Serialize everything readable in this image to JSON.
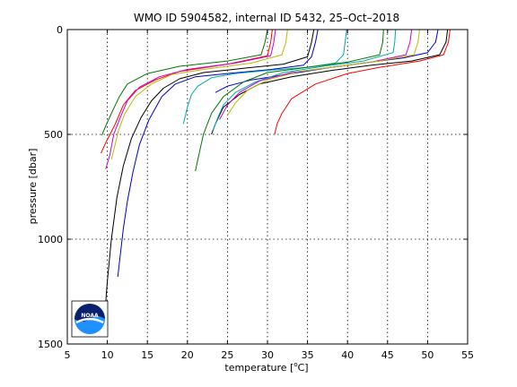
{
  "chart_data": {
    "type": "line",
    "title": "WMO ID 5904582, internal ID 5432, 25–Oct–2018",
    "xlabel_pre": "temperature [",
    "xlabel_deg": "o",
    "xlabel_post": "C]",
    "ylabel": "pressure [dbar]",
    "xlim": [
      5,
      55
    ],
    "ylim": [
      0,
      1500
    ],
    "y_reversed": true,
    "grid": true,
    "x_ticks": [
      5,
      10,
      15,
      20,
      25,
      30,
      35,
      40,
      45,
      50,
      55
    ],
    "y_ticks": [
      0,
      500,
      1000,
      1500
    ],
    "logo": "noaa-logo",
    "series": [
      {
        "color": "#0000cc",
        "points": [
          [
            36.3,
            0
          ],
          [
            36.0,
            60
          ],
          [
            35.5,
            130
          ],
          [
            34.5,
            170
          ],
          [
            30.5,
            190
          ],
          [
            25,
            210
          ],
          [
            21,
            225
          ],
          [
            18.5,
            260
          ],
          [
            16.8,
            320
          ],
          [
            15.2,
            430
          ],
          [
            14.0,
            550
          ],
          [
            13.2,
            680
          ],
          [
            12.5,
            820
          ],
          [
            12.0,
            950
          ],
          [
            11.6,
            1080
          ],
          [
            11.3,
            1180
          ]
        ]
      },
      {
        "color": "#000000",
        "points": [
          [
            35.8,
            0
          ],
          [
            35.5,
            60
          ],
          [
            35.0,
            130
          ],
          [
            32.0,
            165
          ],
          [
            27.0,
            185
          ],
          [
            22.0,
            205
          ],
          [
            19.0,
            235
          ],
          [
            17.0,
            280
          ],
          [
            15.5,
            340
          ],
          [
            14.2,
            420
          ],
          [
            13.0,
            520
          ],
          [
            12.0,
            650
          ],
          [
            11.2,
            800
          ],
          [
            10.5,
            1000
          ],
          [
            10.0,
            1200
          ],
          [
            9.7,
            1350
          ]
        ]
      },
      {
        "color": "#00aaaa",
        "points": [
          [
            39.9,
            0
          ],
          [
            39.7,
            60
          ],
          [
            39.5,
            120
          ],
          [
            38.5,
            160
          ],
          [
            35.0,
            180
          ],
          [
            30.0,
            195
          ],
          [
            26.0,
            210
          ],
          [
            23.0,
            230
          ],
          [
            21.3,
            270
          ],
          [
            20.5,
            310
          ],
          [
            20.0,
            370
          ],
          [
            19.5,
            450
          ]
        ]
      },
      {
        "color": "#ff0000",
        "points": [
          [
            30.6,
            0
          ],
          [
            30.4,
            60
          ],
          [
            30.0,
            125
          ],
          [
            25.0,
            165
          ],
          [
            19.0,
            200
          ],
          [
            16.0,
            240
          ],
          [
            13.5,
            290
          ],
          [
            12.0,
            360
          ],
          [
            11.0,
            450
          ],
          [
            9.8,
            540
          ],
          [
            9.2,
            590
          ]
        ]
      },
      {
        "color": "#007700",
        "points": [
          [
            30.0,
            0
          ],
          [
            29.7,
            60
          ],
          [
            29.2,
            120
          ],
          [
            25.0,
            150
          ],
          [
            19.0,
            175
          ],
          [
            15.0,
            210
          ],
          [
            12.5,
            260
          ],
          [
            11.5,
            320
          ],
          [
            10.5,
            400
          ],
          [
            9.8,
            460
          ],
          [
            9.3,
            505
          ]
        ]
      },
      {
        "color": "#cc00cc",
        "points": [
          [
            31.0,
            0
          ],
          [
            30.8,
            60
          ],
          [
            30.4,
            125
          ],
          [
            26.0,
            160
          ],
          [
            20.0,
            190
          ],
          [
            16.5,
            225
          ],
          [
            14.0,
            275
          ],
          [
            12.5,
            340
          ],
          [
            11.6,
            420
          ],
          [
            10.8,
            500
          ],
          [
            10.3,
            600
          ],
          [
            9.8,
            665
          ]
        ]
      },
      {
        "color": "#bbbb00",
        "points": [
          [
            32.5,
            0
          ],
          [
            32.3,
            60
          ],
          [
            31.8,
            120
          ],
          [
            28.0,
            160
          ],
          [
            22.0,
            190
          ],
          [
            18.0,
            215
          ],
          [
            15.5,
            260
          ],
          [
            13.5,
            320
          ],
          [
            12.2,
            400
          ],
          [
            11.4,
            480
          ],
          [
            10.9,
            560
          ],
          [
            10.5,
            620
          ]
        ]
      },
      {
        "color": "#0000cc",
        "points": [
          [
            51.3,
            0
          ],
          [
            51.0,
            60
          ],
          [
            50.0,
            110
          ],
          [
            47.0,
            135
          ],
          [
            42.0,
            160
          ],
          [
            38.0,
            180
          ],
          [
            33.0,
            210
          ],
          [
            28.0,
            240
          ],
          [
            25.0,
            270
          ],
          [
            23.5,
            300
          ]
        ]
      },
      {
        "color": "#000000",
        "points": [
          [
            52.5,
            0
          ],
          [
            52.3,
            60
          ],
          [
            51.5,
            120
          ],
          [
            48.0,
            150
          ],
          [
            43.0,
            170
          ],
          [
            38.0,
            195
          ],
          [
            33.0,
            225
          ],
          [
            29.0,
            260
          ],
          [
            26.5,
            310
          ],
          [
            24.5,
            370
          ],
          [
            23.5,
            450
          ],
          [
            23.0,
            500
          ]
        ]
      },
      {
        "color": "#00aaaa",
        "points": [
          [
            46.0,
            0
          ],
          [
            45.9,
            60
          ],
          [
            45.7,
            110
          ],
          [
            42.0,
            150
          ],
          [
            37.0,
            175
          ],
          [
            32.0,
            205
          ],
          [
            28.5,
            250
          ],
          [
            26.0,
            300
          ],
          [
            24.5,
            360
          ],
          [
            23.8,
            420
          ],
          [
            23.2,
            480
          ]
        ]
      },
      {
        "color": "#ff0000",
        "points": [
          [
            52.8,
            0
          ],
          [
            52.6,
            60
          ],
          [
            52.0,
            120
          ],
          [
            49.0,
            150
          ],
          [
            44.0,
            180
          ],
          [
            40.0,
            210
          ],
          [
            36.0,
            260
          ],
          [
            33.0,
            330
          ],
          [
            31.8,
            400
          ],
          [
            31.2,
            450
          ],
          [
            30.9,
            500
          ]
        ]
      },
      {
        "color": "#007700",
        "points": [
          [
            44.5,
            0
          ],
          [
            44.4,
            60
          ],
          [
            44.0,
            120
          ],
          [
            40.0,
            155
          ],
          [
            35.0,
            180
          ],
          [
            30.0,
            205
          ],
          [
            27.0,
            250
          ],
          [
            24.5,
            320
          ],
          [
            23.0,
            400
          ],
          [
            22.0,
            500
          ],
          [
            21.3,
            620
          ],
          [
            21.0,
            675
          ]
        ]
      },
      {
        "color": "#cc00cc",
        "points": [
          [
            48.0,
            0
          ],
          [
            47.8,
            60
          ],
          [
            47.3,
            120
          ],
          [
            43.0,
            155
          ],
          [
            38.0,
            180
          ],
          [
            33.0,
            205
          ],
          [
            29.0,
            245
          ],
          [
            26.5,
            300
          ],
          [
            25.0,
            360
          ],
          [
            24.0,
            430
          ]
        ]
      },
      {
        "color": "#bbbb00",
        "points": [
          [
            49.0,
            0
          ],
          [
            48.8,
            60
          ],
          [
            48.3,
            120
          ],
          [
            44.0,
            150
          ],
          [
            39.0,
            175
          ],
          [
            34.0,
            200
          ],
          [
            30.0,
            240
          ],
          [
            27.5,
            290
          ],
          [
            26.0,
            350
          ],
          [
            25.0,
            410
          ]
        ]
      }
    ]
  }
}
